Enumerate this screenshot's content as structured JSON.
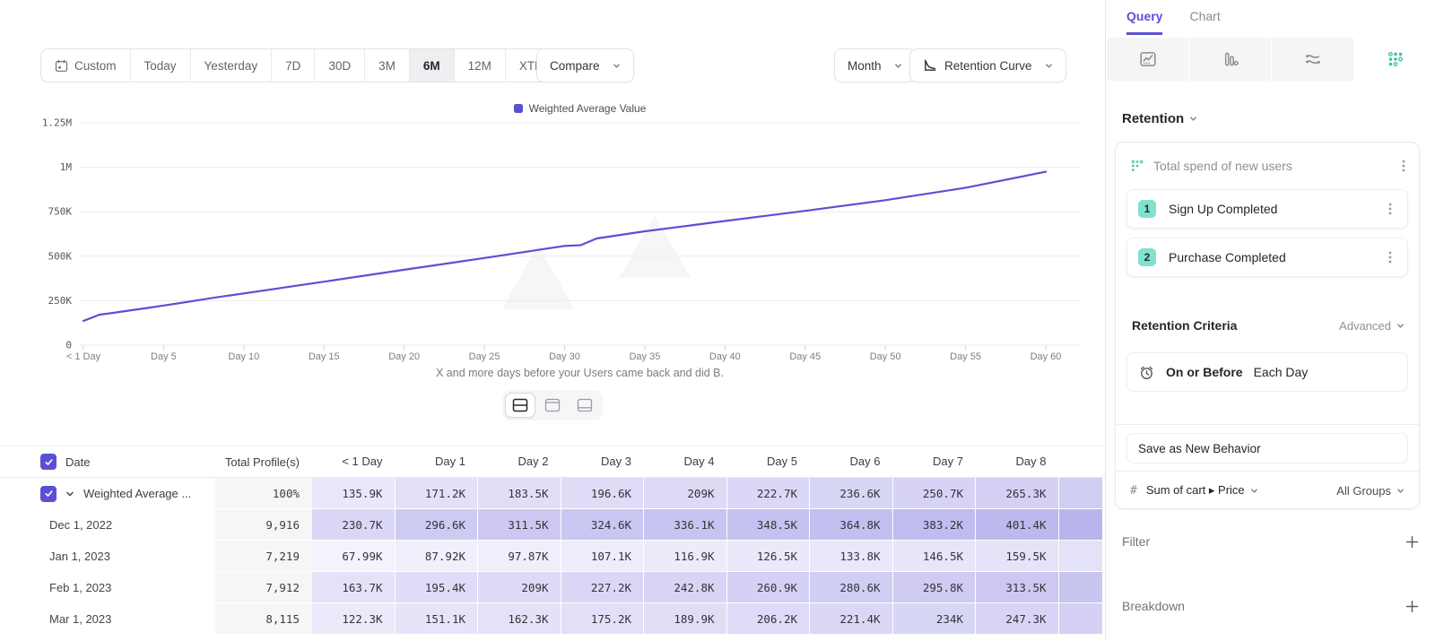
{
  "toolbar": {
    "date_ranges": [
      "Custom",
      "Today",
      "Yesterday",
      "7D",
      "30D",
      "3M",
      "6M",
      "12M",
      "XTD"
    ],
    "selected_range": "6M",
    "compare_label": "Compare",
    "granularity_label": "Month",
    "chart_type_label": "Retention Curve"
  },
  "chart_data": {
    "type": "line",
    "title": "",
    "xlabel": "X and more days before your Users came back and did B.",
    "ylabel": "",
    "xlim": [
      0,
      60
    ],
    "ylim": [
      0,
      1250000
    ],
    "grid": true,
    "legend_position": "top-center",
    "x_tick_days": [
      0,
      5,
      10,
      15,
      20,
      25,
      30,
      35,
      40,
      45,
      50,
      55,
      60
    ],
    "x_tick_labels": [
      "< 1 Day",
      "Day 5",
      "Day 10",
      "Day 15",
      "Day 20",
      "Day 25",
      "Day 30",
      "Day 35",
      "Day 40",
      "Day 45",
      "Day 50",
      "Day 55",
      "Day 60"
    ],
    "y_tick_values": [
      0,
      250000,
      500000,
      750000,
      1000000,
      1250000
    ],
    "y_tick_labels": [
      "0",
      "250K",
      "500K",
      "750K",
      "1M",
      "1.25M"
    ],
    "series": [
      {
        "name": "Weighted Average Value",
        "color": "#5b50d3",
        "points": [
          [
            0,
            135900
          ],
          [
            1,
            171200
          ],
          [
            2,
            183500
          ],
          [
            3,
            196600
          ],
          [
            4,
            209000
          ],
          [
            5,
            222700
          ],
          [
            6,
            236600
          ],
          [
            7,
            250700
          ],
          [
            8,
            265300
          ],
          [
            10,
            291000
          ],
          [
            15,
            357000
          ],
          [
            20,
            424000
          ],
          [
            25,
            490000
          ],
          [
            30,
            558000
          ],
          [
            31,
            562000
          ],
          [
            32,
            600000
          ],
          [
            35,
            640000
          ],
          [
            40,
            698000
          ],
          [
            45,
            755000
          ],
          [
            50,
            815000
          ],
          [
            55,
            885000
          ],
          [
            60,
            975000
          ]
        ]
      }
    ]
  },
  "view_toggle": {
    "options": [
      "split-view",
      "chart-only",
      "table-only"
    ],
    "selected": 0
  },
  "table": {
    "columns": [
      "Date",
      "Total Profile(s)",
      "< 1 Day",
      "Day 1",
      "Day 2",
      "Day 3",
      "Day 4",
      "Day 5",
      "Day 6",
      "Day 7",
      "Day 8"
    ],
    "rows": [
      {
        "label": "Weighted Average ...",
        "checked": true,
        "expandable": true,
        "total": "100%",
        "values": [
          "135.9K",
          "171.2K",
          "183.5K",
          "196.6K",
          "209K",
          "222.7K",
          "236.6K",
          "250.7K",
          "265.3K"
        ]
      },
      {
        "label": "Dec 1, 2022",
        "total": "9,916",
        "values": [
          "230.7K",
          "296.6K",
          "311.5K",
          "324.6K",
          "336.1K",
          "348.5K",
          "364.8K",
          "383.2K",
          "401.4K"
        ]
      },
      {
        "label": "Jan 1, 2023",
        "total": "7,219",
        "values": [
          "67.99K",
          "87.92K",
          "97.87K",
          "107.1K",
          "116.9K",
          "126.5K",
          "133.8K",
          "146.5K",
          "159.5K"
        ]
      },
      {
        "label": "Feb 1, 2023",
        "total": "7,912",
        "values": [
          "163.7K",
          "195.4K",
          "209K",
          "227.2K",
          "242.8K",
          "260.9K",
          "280.6K",
          "295.8K",
          "313.5K"
        ]
      },
      {
        "label": "Mar 1, 2023",
        "total": "8,115",
        "values": [
          "122.3K",
          "151.1K",
          "162.3K",
          "175.2K",
          "189.9K",
          "206.2K",
          "221.4K",
          "234K",
          "247.3K"
        ]
      }
    ]
  },
  "sidebar": {
    "tabs": {
      "query": "Query",
      "chart": "Chart"
    },
    "report_icons": [
      "insights-icon",
      "funnels-icon",
      "flows-icon",
      "retention-icon"
    ],
    "selected_report": "retention-icon",
    "section_title": "Retention",
    "behavior_title": "Total spend of new users",
    "steps": [
      {
        "num": "1",
        "label": "Sign Up Completed"
      },
      {
        "num": "2",
        "label": "Purchase Completed"
      }
    ],
    "criteria_label": "Retention Criteria",
    "criteria_mode": "Advanced",
    "condition_primary": "On or Before",
    "condition_secondary": "Each Day",
    "save_button": "Save as New Behavior",
    "measure_symbol": "#",
    "measure_label": "Sum of cart ▸ Price",
    "groups_label": "All Groups",
    "filter_label": "Filter",
    "breakdown_label": "Breakdown"
  },
  "colors": {
    "accent_purple": "#5b50d3",
    "cell_purple_rgb": "99,88,216",
    "teal": "#3fbfae",
    "badge_mint": "#7fe1cf",
    "grid_line": "#ebebee",
    "text_dark": "#26262c",
    "text_gray": "#8b8b94"
  }
}
